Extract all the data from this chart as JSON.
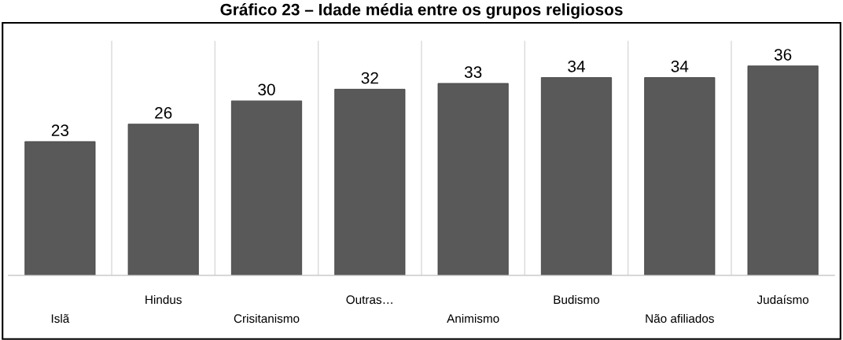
{
  "chart_data": {
    "type": "bar",
    "title": "Gráfico 23 – Idade média entre os grupos religiosos",
    "categories": [
      "Islã",
      "Hindus",
      "Crisitanismo",
      "Outras…",
      "Animismo",
      "Budismo",
      "Não afiliados",
      "Judaísmo"
    ],
    "values": [
      23,
      26,
      30,
      32,
      33,
      34,
      34,
      36
    ],
    "data_labels": true,
    "color": "#595959",
    "grid": "x"
  }
}
